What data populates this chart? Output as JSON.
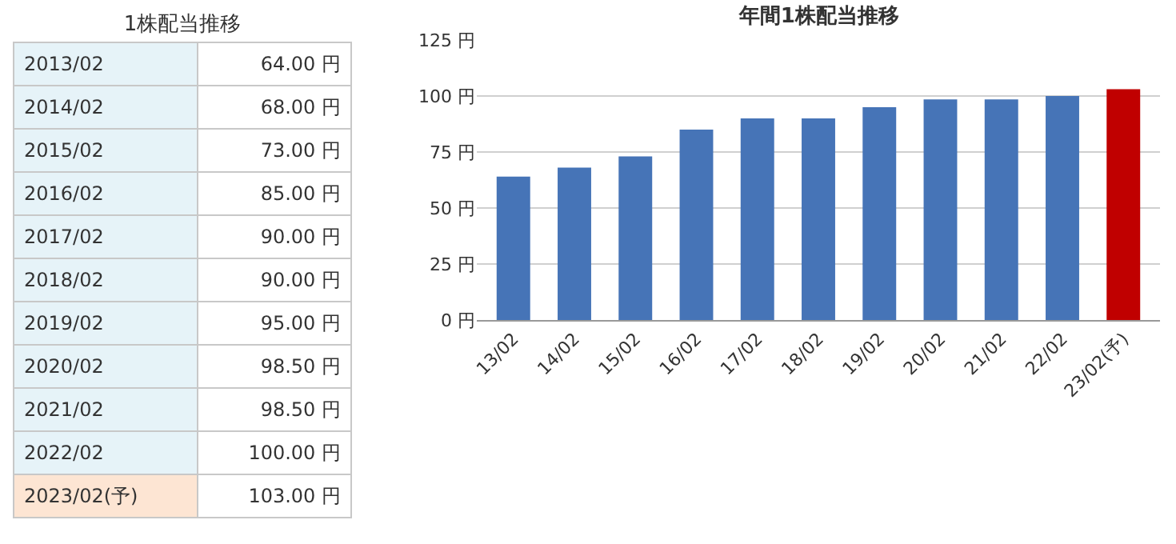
{
  "chart_data": [
    {
      "type": "other",
      "title": "1株配当推移",
      "categories": [
        "2013/02",
        "2014/02",
        "2015/02",
        "2016/02",
        "2017/02",
        "2018/02",
        "2019/02",
        "2020/02",
        "2021/02",
        "2022/02",
        "2023/02(予)"
      ],
      "value_labels": [
        "64.00 円",
        "68.00 円",
        "73.00 円",
        "85.00 円",
        "90.00 円",
        "90.00 円",
        "95.00 円",
        "98.50 円",
        "98.50 円",
        "100.00 円",
        "103.00 円"
      ],
      "colors": [
        "#e6f3f8",
        "#e6f3f8",
        "#e6f3f8",
        "#e6f3f8",
        "#e6f3f8",
        "#e6f3f8",
        "#e6f3f8",
        "#e6f3f8",
        "#e6f3f8",
        "#e6f3f8",
        "#fde5d3"
      ]
    },
    {
      "type": "bar",
      "title": "年間1株配当推移",
      "categories": [
        "13/02",
        "14/02",
        "15/02",
        "16/02",
        "17/02",
        "18/02",
        "19/02",
        "20/02",
        "21/02",
        "22/02",
        "23/02(予)"
      ],
      "values": [
        64,
        68,
        73,
        85,
        90,
        90,
        95,
        98.5,
        98.5,
        100,
        103
      ],
      "colors": [
        "#4674b7",
        "#4674b7",
        "#4674b7",
        "#4674b7",
        "#4674b7",
        "#4674b7",
        "#4674b7",
        "#4674b7",
        "#4674b7",
        "#4674b7",
        "#c00000"
      ],
      "ylim": [
        0,
        125
      ],
      "yticks": [
        {
          "value": 0,
          "label": "0 円"
        },
        {
          "value": 25,
          "label": "25 円"
        },
        {
          "value": 50,
          "label": "50 円"
        },
        {
          "value": 75,
          "label": "75 円"
        },
        {
          "value": 100,
          "label": "100 円"
        },
        {
          "value": 125,
          "label": "125 円"
        }
      ],
      "grid": "y"
    }
  ]
}
